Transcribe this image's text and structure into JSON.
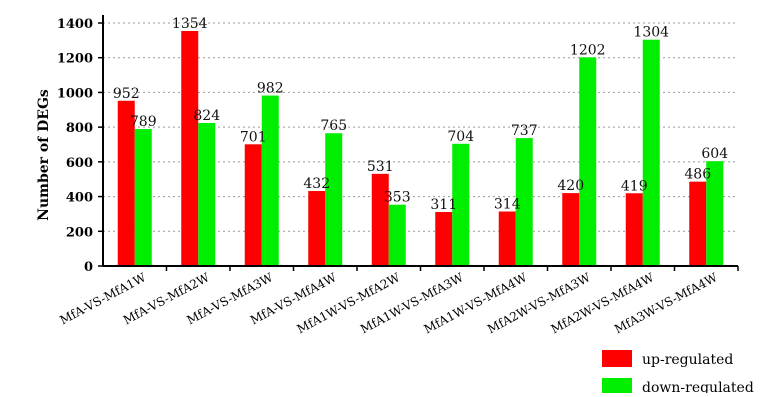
{
  "chart_data": {
    "type": "bar",
    "title": "",
    "xlabel": "",
    "ylabel": "Number of DEGs",
    "ylim": [
      0,
      1400
    ],
    "yticks": [
      0,
      200,
      400,
      600,
      800,
      1000,
      1200,
      1400
    ],
    "grid": true,
    "legend_position": "bottom-right",
    "categories": [
      "MfA-VS-MfA1W",
      "MfA-VS-MfA2W",
      "MfA-VS-MfA3W",
      "MfA-VS-MfA4W",
      "MfA1W-VS-MfA2W",
      "MfA1W-VS-MfA3W",
      "MfA1W-VS-MfA4W",
      "MfA2W-VS-MfA3W",
      "MfA2W-VS-MfA4W",
      "MfA3W-VS-MfA4W"
    ],
    "series": [
      {
        "name": "up-regulated",
        "color": "#ff0000",
        "values": [
          952,
          1354,
          701,
          432,
          531,
          311,
          314,
          420,
          419,
          486
        ]
      },
      {
        "name": "down-regulated",
        "color": "#00ee00",
        "values": [
          789,
          824,
          982,
          765,
          353,
          704,
          737,
          1202,
          1304,
          604
        ]
      }
    ]
  }
}
